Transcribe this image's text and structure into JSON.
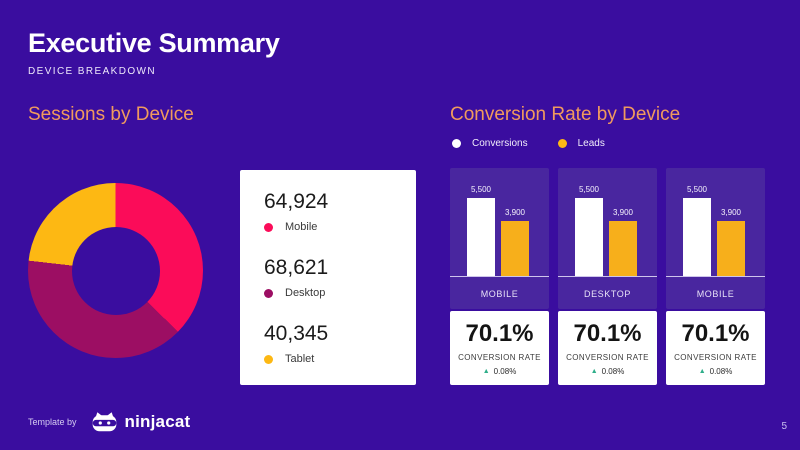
{
  "header": {
    "title": "Executive Summary",
    "subtitle": "DEVICE BREAKDOWN"
  },
  "sessions": {
    "heading": "Sessions by Device",
    "stats": [
      {
        "value": "64,924",
        "label": "Mobile",
        "color": "#FB0C59"
      },
      {
        "value": "68,621",
        "label": "Desktop",
        "color": "#9C0E63"
      },
      {
        "value": "40,345",
        "label": "Tablet",
        "color": "#FDB813"
      }
    ]
  },
  "conversion": {
    "heading": "Conversion Rate by Device",
    "legend": [
      {
        "label": "Conversions",
        "color": "#FFFFFF"
      },
      {
        "label": "Leads",
        "color": "#FDB813"
      }
    ],
    "cards": [
      {
        "device": "MOBILE",
        "conversions_label": "5,500",
        "leads_label": "3,900",
        "rate": "70.1%",
        "rate_label": "CONVERSION RATE",
        "delta_icon": "▲",
        "delta": "0.08%"
      },
      {
        "device": "DESKTOP",
        "conversions_label": "5,500",
        "leads_label": "3,900",
        "rate": "70.1%",
        "rate_label": "CONVERSION RATE",
        "delta_icon": "▲",
        "delta": "0.08%"
      },
      {
        "device": "MOBILE",
        "conversions_label": "5,500",
        "leads_label": "3,900",
        "rate": "70.1%",
        "rate_label": "CONVERSION RATE",
        "delta_icon": "▲",
        "delta": "0.08%"
      }
    ]
  },
  "footer": {
    "template_by": "Template by",
    "brand": "ninjacat"
  },
  "page": {
    "number": "5",
    "background": "#3A0D9F",
    "card_purple": "#49269F",
    "accent_orange": "#F09A5E",
    "delta_green": "#2FAE8A"
  },
  "chart_data": [
    {
      "type": "pie",
      "subtype": "donut",
      "title": "Sessions by Device",
      "categories": [
        "Mobile",
        "Desktop",
        "Tablet"
      ],
      "values": [
        64924,
        68621,
        40345
      ],
      "colors": [
        "#FB0C59",
        "#9C0E63",
        "#FDB813"
      ],
      "legend_position": "right",
      "hole_ratio": 0.5
    },
    {
      "type": "bar",
      "title": "Conversion Rate by Device",
      "categories": [
        "MOBILE",
        "DESKTOP",
        "MOBILE"
      ],
      "series": [
        {
          "name": "Conversions",
          "values": [
            5500,
            5500,
            5500
          ],
          "color": "#FFFFFF"
        },
        {
          "name": "Leads",
          "values": [
            3900,
            3900,
            3900
          ],
          "color": "#F7AF1B"
        }
      ],
      "ylim": [
        0,
        5500
      ],
      "grid": false,
      "legend_position": "top",
      "annotations": [
        "70.1% conversion rate, up 0.08%",
        "70.1% conversion rate, up 0.08%",
        "70.1% conversion rate, up 0.08%"
      ]
    }
  ]
}
